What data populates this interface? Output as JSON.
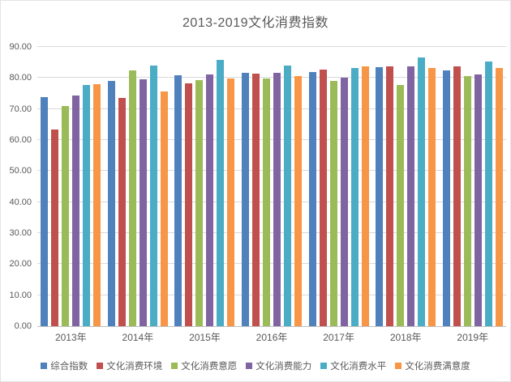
{
  "title": "2013-2019文化消费指数",
  "axis": {
    "y_tick_labels": [
      "90.00",
      "80.00",
      "70.00",
      "60.00",
      "50.00",
      "40.00",
      "30.00",
      "20.00",
      "10.00",
      "0.00"
    ],
    "y_tick_values": [
      90,
      80,
      70,
      60,
      50,
      40,
      30,
      20,
      10,
      0
    ]
  },
  "colors": {
    "grid": "#d9d9d9",
    "axis_line": "#bfbfbf",
    "text": "#595959"
  },
  "chart_data": {
    "type": "bar",
    "title": "2013-2019文化消费指数",
    "categories": [
      "2013年",
      "2014年",
      "2015年",
      "2016年",
      "2017年",
      "2018年",
      "2019年"
    ],
    "series": [
      {
        "name": "综合指数",
        "color": "#4F81BD",
        "values": [
          73.7,
          79.0,
          80.9,
          81.6,
          81.8,
          83.6,
          82.4
        ]
      },
      {
        "name": "文化消费环境",
        "color": "#C0504D",
        "values": [
          63.3,
          73.5,
          78.3,
          81.4,
          82.7,
          83.8,
          83.8
        ]
      },
      {
        "name": "文化消费意愿",
        "color": "#9BBB59",
        "values": [
          70.9,
          82.4,
          79.2,
          79.8,
          79.0,
          77.7,
          80.7
        ]
      },
      {
        "name": "文化消费能力",
        "color": "#8064A2",
        "values": [
          74.4,
          79.6,
          81.2,
          81.6,
          80.0,
          83.8,
          81.2
        ]
      },
      {
        "name": "文化消费水平",
        "color": "#4BACC6",
        "values": [
          77.7,
          84.0,
          85.9,
          84.0,
          83.2,
          86.6,
          85.3
        ]
      },
      {
        "name": "文化消费满意度",
        "color": "#F79646",
        "values": [
          77.9,
          75.7,
          79.8,
          80.5,
          83.8,
          83.3,
          83.1
        ]
      }
    ],
    "ylim": [
      0,
      90
    ],
    "grid": true,
    "legend_position": "bottom"
  }
}
